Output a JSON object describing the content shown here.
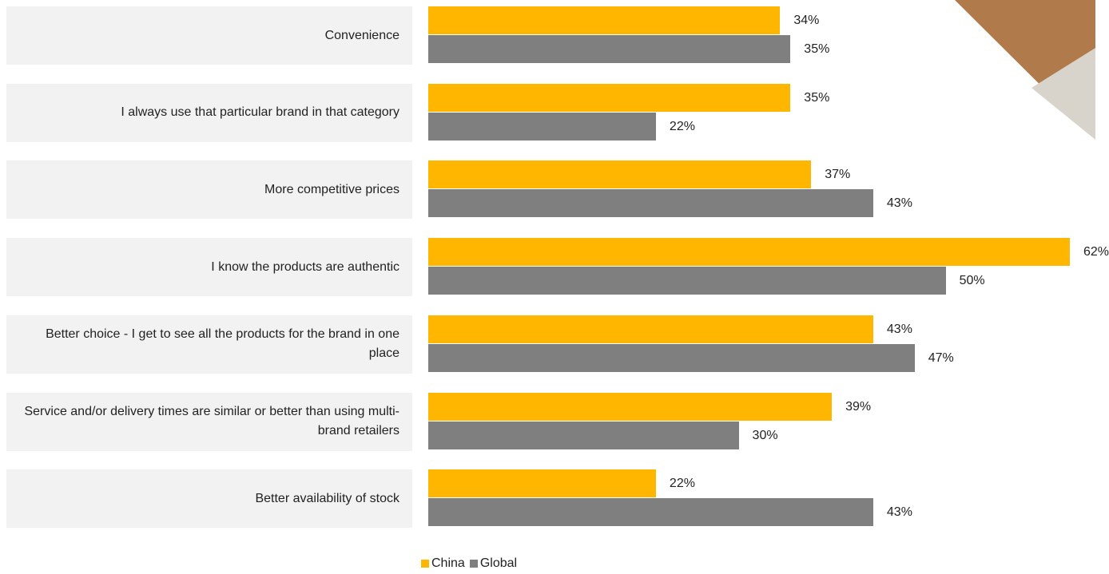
{
  "chart_data": {
    "type": "bar",
    "orientation": "horizontal",
    "categories": [
      "Convenience",
      "I always use that particular brand in that category",
      "More competitive prices",
      "I know the products are authentic",
      "Better choice - I get to see all the products for the brand in one place",
      "Service and/or delivery times are similar or better than using multi-brand retailers",
      "Better availability of stock"
    ],
    "series": [
      {
        "name": "China",
        "color": "#FFB600",
        "values": [
          34,
          35,
          37,
          62,
          43,
          39,
          22
        ],
        "value_labels": [
          "34%",
          "35%",
          "37%",
          "62%",
          "43%",
          "39%",
          "22%"
        ]
      },
      {
        "name": "Global",
        "color": "#7F7F7F",
        "values": [
          35,
          22,
          43,
          50,
          47,
          30,
          43
        ],
        "value_labels": [
          "35%",
          "22%",
          "43%",
          "50%",
          "47%",
          "30%",
          "43%"
        ]
      }
    ]
  }
}
